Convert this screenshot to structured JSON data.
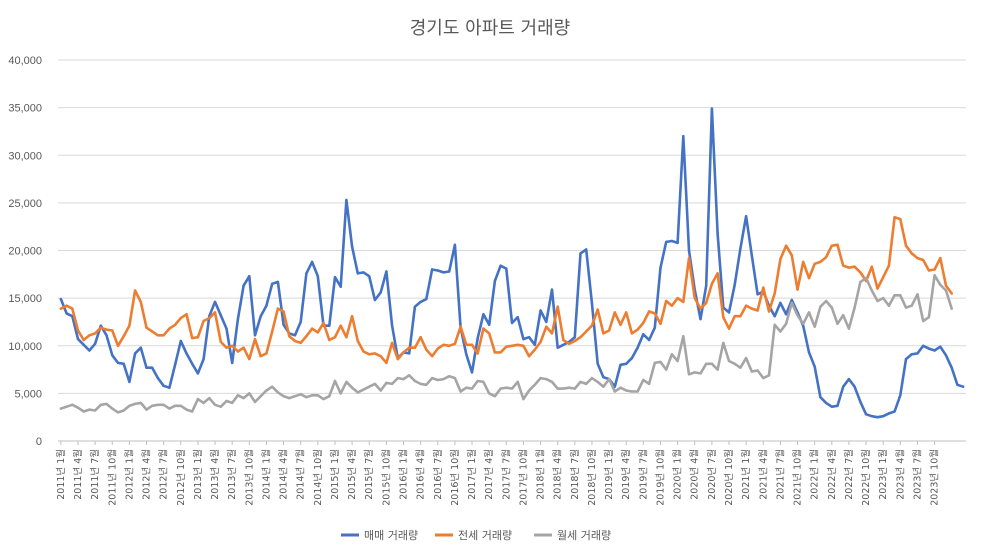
{
  "chart_data": {
    "type": "line",
    "title": "경기도 아파트 거래량",
    "xlabel": "",
    "ylabel": "",
    "ylim": [
      0,
      40000
    ],
    "yticks": [
      "0",
      "5,000",
      "10,000",
      "15,000",
      "20,000",
      "25,000",
      "30,000",
      "35,000",
      "40,000"
    ],
    "ytick_values": [
      0,
      5000,
      10000,
      15000,
      20000,
      25000,
      30000,
      35000,
      40000
    ],
    "grid": "horizontal",
    "legend": "bottom",
    "x_tick_labels": [
      "2011년 1월",
      "2011년 4월",
      "2011년 7월",
      "2011년 10월",
      "2012년 1월",
      "2012년 4월",
      "2012년 7월",
      "2012년 10월",
      "2013년 1월",
      "2013년 4월",
      "2013년 7월",
      "2013년 10월",
      "2014년 1월",
      "2014년 4월",
      "2014년 7월",
      "2014년 10월",
      "2015년 1월",
      "2015년 4월",
      "2015년 7월",
      "2015년 10월",
      "2016년 1월",
      "2016년 4월",
      "2016년 7월",
      "2016년 10월",
      "2017년 1월",
      "2017년 4월",
      "2017년 7월",
      "2017년 10월",
      "2018년 1월",
      "2018년 4월",
      "2018년 7월",
      "2018년 10월",
      "2019년 1월",
      "2019년 4월",
      "2019년 7월",
      "2019년 10월",
      "2020년 1월",
      "2020년 4월",
      "2020년 7월",
      "2020년 10월",
      "2021년 1월",
      "2021년 4월",
      "2021년 7월",
      "2021년 10월",
      "2022년 1월",
      "2022년 4월",
      "2022년 7월",
      "2022년 10월",
      "2023년 1월",
      "2023년 4월",
      "2023년 7월",
      "2023년 10월"
    ],
    "series": [
      {
        "name": "매매 거래량",
        "color": "#4472C4",
        "values": [
          14900,
          13400,
          13100,
          10700,
          10100,
          9500,
          10200,
          12100,
          11100,
          9000,
          8200,
          8100,
          6200,
          9200,
          9800,
          7700,
          7700,
          6600,
          5800,
          5600,
          8000,
          10500,
          9200,
          8100,
          7100,
          8600,
          13100,
          14600,
          13200,
          11800,
          8200,
          12800,
          16300,
          17300,
          11100,
          13100,
          14200,
          16500,
          16700,
          12200,
          11300,
          11100,
          12500,
          17600,
          18800,
          17300,
          12100,
          12100,
          17200,
          16200,
          25300,
          20400,
          17600,
          17700,
          17300,
          14800,
          15600,
          17800,
          12100,
          8700,
          9300,
          9200,
          14100,
          14600,
          14900,
          18000,
          17900,
          17700,
          17800,
          20600,
          11900,
          9100,
          7200,
          10800,
          13300,
          12200,
          16800,
          18400,
          18100,
          12400,
          13000,
          10700,
          10900,
          10100,
          13700,
          12500,
          15900,
          9800,
          10100,
          10400,
          10900,
          19700,
          20100,
          14500,
          8100,
          6700,
          6500,
          5700,
          8000,
          8100,
          8700,
          9800,
          11200,
          10600,
          11900,
          18200,
          20900,
          21000,
          20800,
          32000,
          20000,
          15900,
          12800,
          16300,
          34900,
          21800,
          14000,
          13500,
          16400,
          20200,
          23600,
          19500,
          15400,
          15700,
          14200,
          13100,
          14500,
          13300,
          14800,
          13500,
          12100,
          9300,
          7800,
          4600,
          4000,
          3600,
          3700,
          5700,
          6500,
          5700,
          4100,
          2800,
          2600,
          2500,
          2600,
          2900,
          3100,
          4800,
          8600,
          9100,
          9200,
          10000,
          9700,
          9500,
          9900,
          9000,
          7700,
          5900,
          5700
        ]
      },
      {
        "name": "전세 거래량",
        "color": "#ED7D31",
        "values": [
          13900,
          14200,
          13900,
          11600,
          10600,
          11100,
          11300,
          11900,
          11700,
          11600,
          10000,
          11000,
          12100,
          15800,
          14600,
          11900,
          11500,
          11100,
          11100,
          11800,
          12200,
          12900,
          13300,
          10800,
          10900,
          12600,
          12900,
          13500,
          10400,
          9800,
          10000,
          9400,
          9800,
          8600,
          10700,
          8900,
          9200,
          11500,
          13900,
          13600,
          11000,
          10500,
          10300,
          11000,
          11800,
          11400,
          12400,
          10600,
          10900,
          12100,
          10900,
          13100,
          10500,
          9400,
          9100,
          9200,
          8900,
          8200,
          10300,
          8600,
          9300,
          9800,
          9800,
          10900,
          9600,
          8900,
          9700,
          10100,
          10000,
          10200,
          12000,
          10100,
          10100,
          9200,
          11800,
          11300,
          9300,
          9300,
          9900,
          10000,
          10100,
          10000,
          8900,
          9600,
          10400,
          12000,
          11300,
          14100,
          10600,
          10200,
          10500,
          10900,
          11500,
          12100,
          13800,
          11300,
          11600,
          13500,
          12200,
          13500,
          11300,
          11700,
          12400,
          13600,
          13400,
          12300,
          14700,
          14200,
          15000,
          14600,
          19200,
          15000,
          13900,
          14500,
          16500,
          17600,
          13000,
          11800,
          13100,
          13100,
          14200,
          13900,
          13700,
          16100,
          13600,
          15500,
          19100,
          20500,
          19500,
          15900,
          18800,
          17100,
          18600,
          18800,
          19300,
          20500,
          20600,
          18400,
          18200,
          18300,
          17700,
          16800,
          18300,
          16000,
          17200,
          18400,
          23500,
          23300,
          20500,
          19700,
          19200,
          19000,
          17900,
          18000,
          19200,
          16300,
          15500
        ]
      },
      {
        "name": "월세 거래량",
        "color": "#A5A5A5",
        "values": [
          3400,
          3600,
          3800,
          3500,
          3100,
          3300,
          3200,
          3800,
          3900,
          3400,
          3000,
          3200,
          3700,
          3900,
          4000,
          3300,
          3700,
          3800,
          3800,
          3400,
          3700,
          3700,
          3300,
          3100,
          4400,
          4000,
          4500,
          3800,
          3600,
          4200,
          4000,
          4800,
          4500,
          5000,
          4100,
          4700,
          5300,
          5700,
          5100,
          4700,
          4500,
          4700,
          4900,
          4600,
          4800,
          4800,
          4400,
          4700,
          6300,
          5000,
          6200,
          5600,
          5100,
          5400,
          5700,
          6000,
          5300,
          6100,
          6000,
          6600,
          6500,
          6900,
          6300,
          6000,
          5900,
          6600,
          6400,
          6500,
          6800,
          6600,
          5200,
          5600,
          5500,
          6300,
          6200,
          5000,
          4700,
          5500,
          5600,
          5500,
          6200,
          4400,
          5300,
          5900,
          6600,
          6500,
          6200,
          5500,
          5500,
          5600,
          5500,
          6200,
          6000,
          6600,
          6200,
          5700,
          6500,
          5200,
          5600,
          5300,
          5200,
          5200,
          6400,
          6000,
          8200,
          8300,
          7500,
          9100,
          8400,
          11000,
          7000,
          7200,
          7100,
          8100,
          8100,
          7500,
          10300,
          8400,
          8100,
          7700,
          8700,
          7300,
          7400,
          6600,
          6900,
          12200,
          11500,
          12300,
          14500,
          13200,
          12300,
          13500,
          12000,
          14100,
          14700,
          14000,
          12300,
          13200,
          11800,
          14000,
          16700,
          17100,
          15800,
          14700,
          15000,
          14200,
          15300,
          15300,
          14000,
          14200,
          15400,
          12600,
          13000,
          17400,
          16400,
          15800,
          13900
        ]
      }
    ]
  }
}
